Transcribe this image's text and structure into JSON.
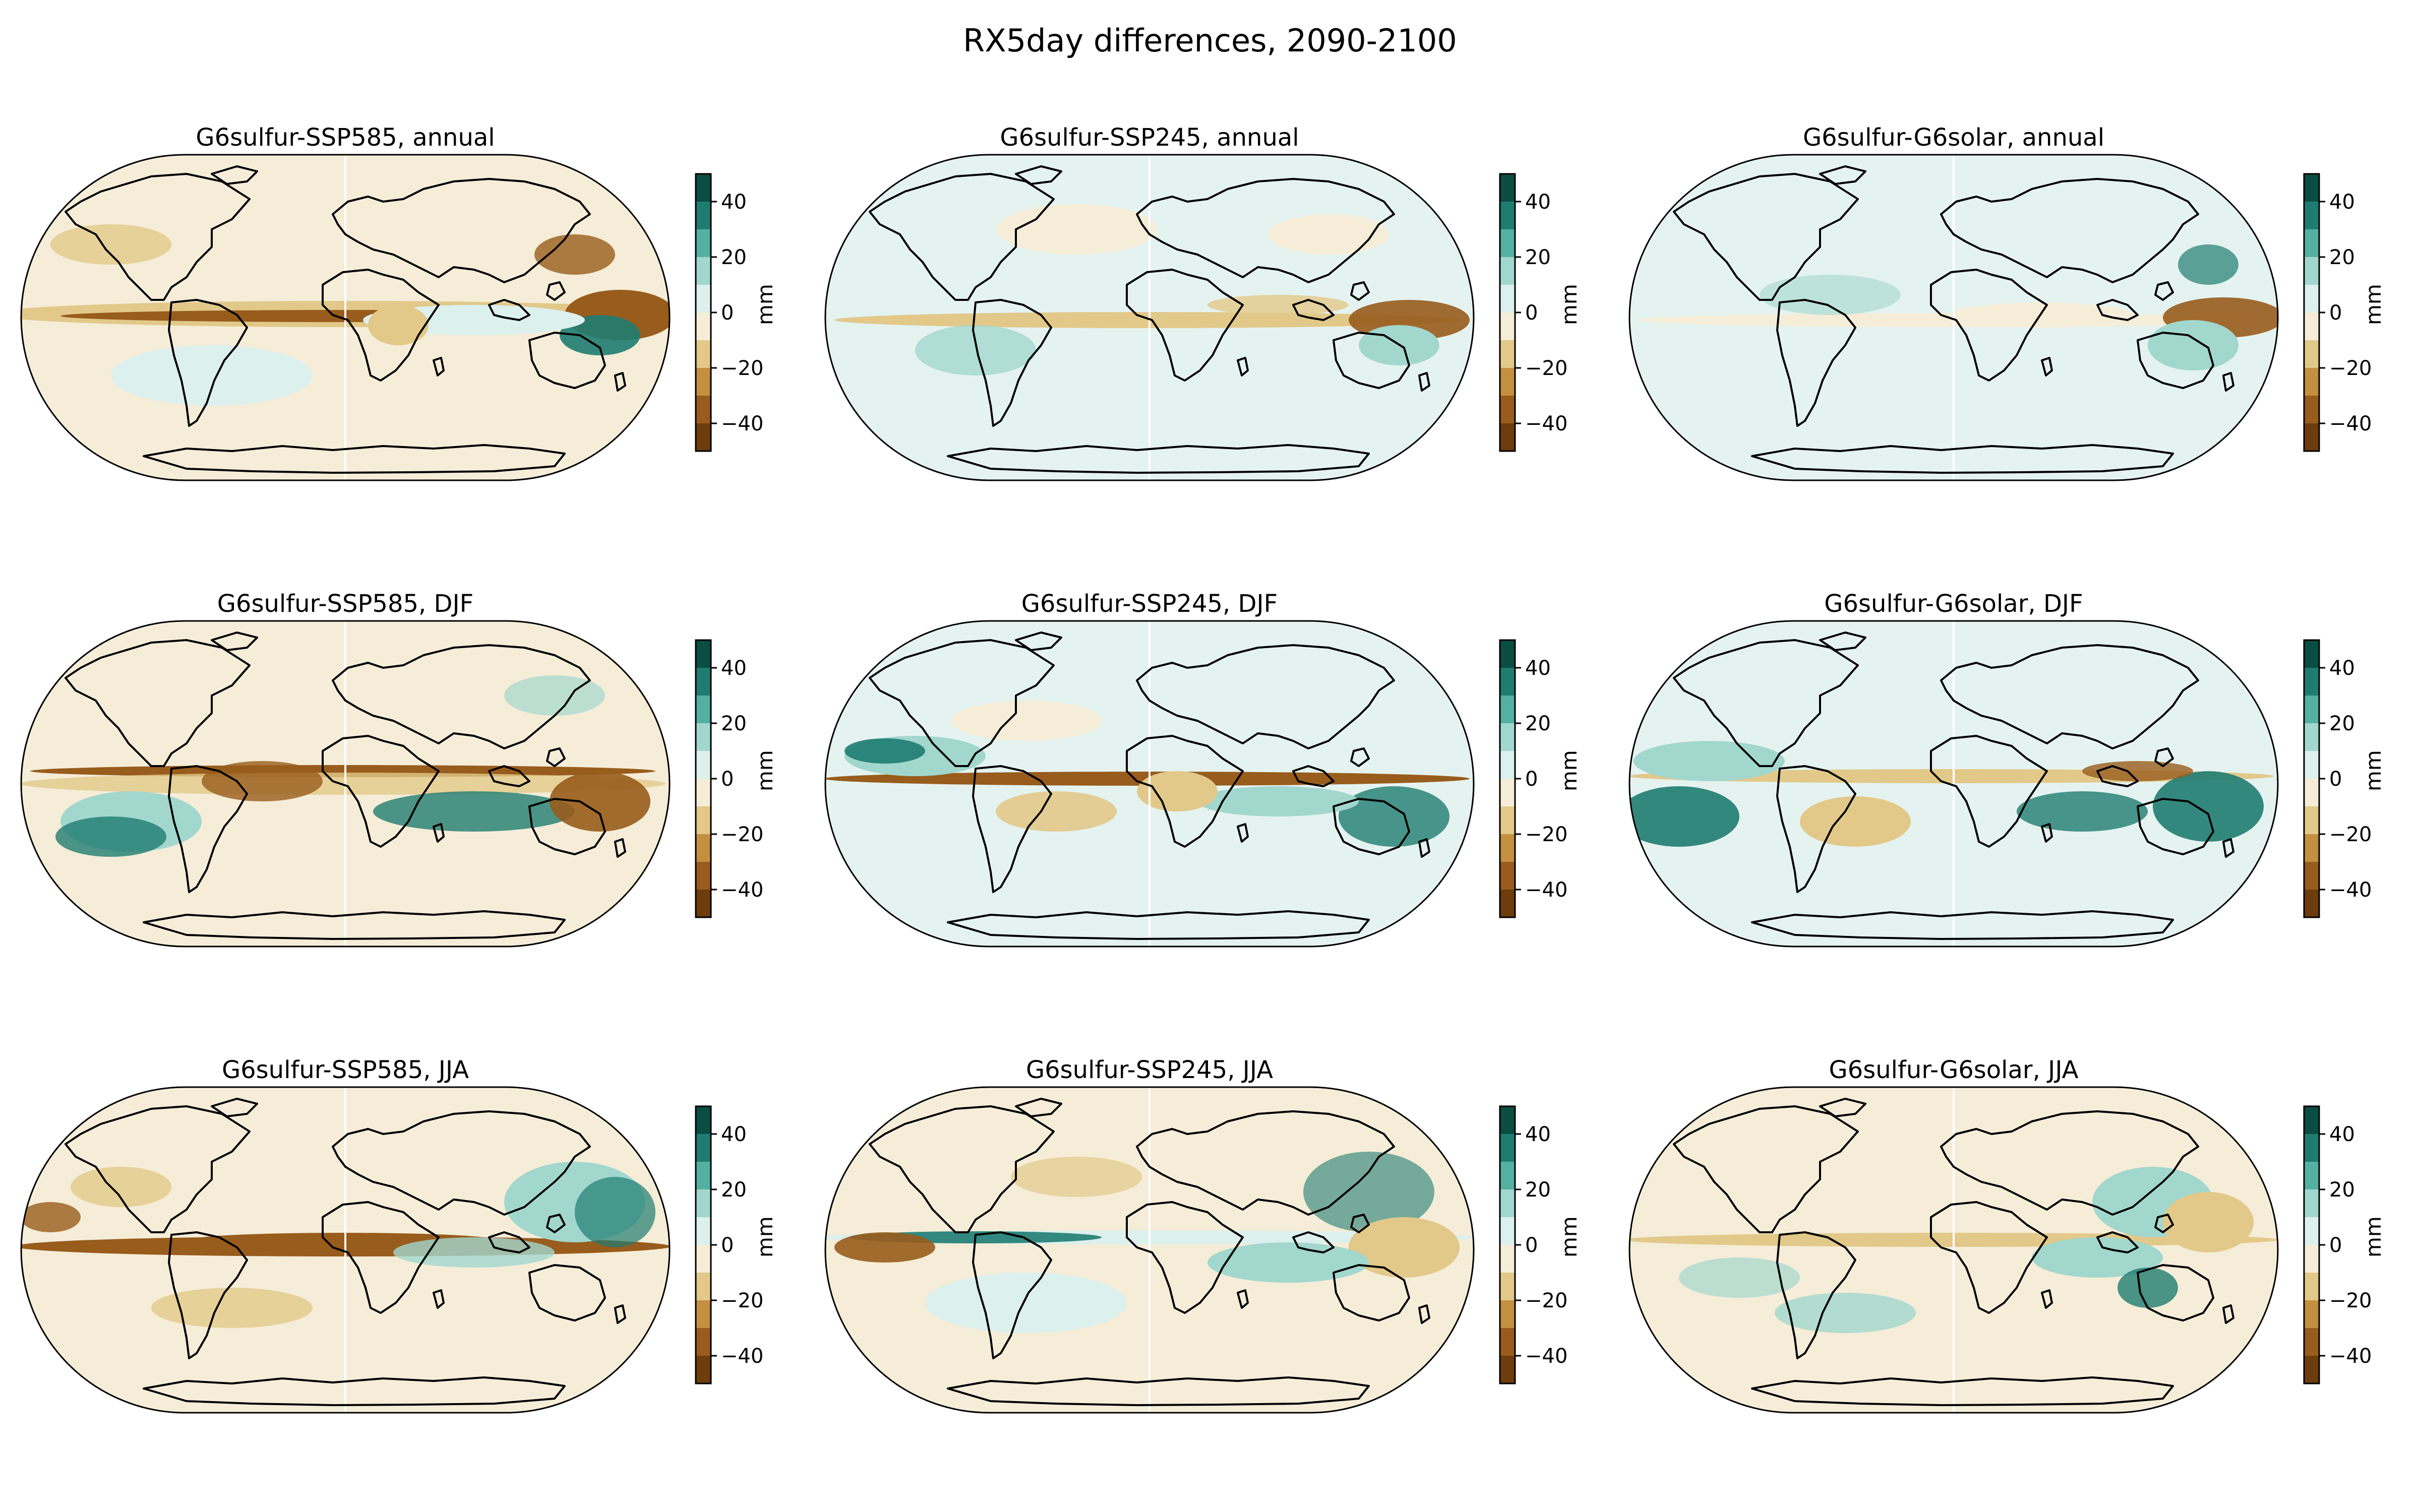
{
  "title": "RX5day differences, 2090-2100",
  "colorbar": {
    "unit": "mm",
    "ticks": [
      40,
      20,
      0,
      -20,
      -40
    ],
    "tick_labels": [
      "40",
      "20",
      "0",
      "−20",
      "−40"
    ],
    "levels": [
      50,
      40,
      30,
      20,
      10,
      0,
      -10,
      -20,
      -30,
      -40,
      -50
    ],
    "colors": [
      "#0a4d43",
      "#1f7c71",
      "#54b0a1",
      "#a2d7ce",
      "#dcf0ee",
      "#f5edd8",
      "#e2c98a",
      "#c49040",
      "#985c1c",
      "#6d3d0c"
    ]
  },
  "palette": {
    "strong_pos": "#1f7c71",
    "pos": "#a2d7ce",
    "weak_pos": "#dcf0ee",
    "weak_neg": "#f5edd8",
    "neg": "#e2c98a",
    "strong_neg": "#985c1c"
  },
  "panels": [
    {
      "title": "G6sulfur-SSP585, annual",
      "background": "#f5edd8"
    },
    {
      "title": "G6sulfur-SSP245, annual",
      "background": "#e5f3f0"
    },
    {
      "title": "G6sulfur-G6solar, annual",
      "background": "#e5f3f0"
    },
    {
      "title": "G6sulfur-SSP585, DJF",
      "background": "#f5edd8"
    },
    {
      "title": "G6sulfur-SSP245, DJF",
      "background": "#e5f3f0"
    },
    {
      "title": "G6sulfur-G6solar, DJF",
      "background": "#e5f3f0"
    },
    {
      "title": "G6sulfur-SSP585, JJA",
      "background": "#f5edd8"
    },
    {
      "title": "G6sulfur-SSP245, JJA",
      "background": "#f5edd8"
    },
    {
      "title": "G6sulfur-G6solar, JJA",
      "background": "#f5edd8"
    }
  ]
}
